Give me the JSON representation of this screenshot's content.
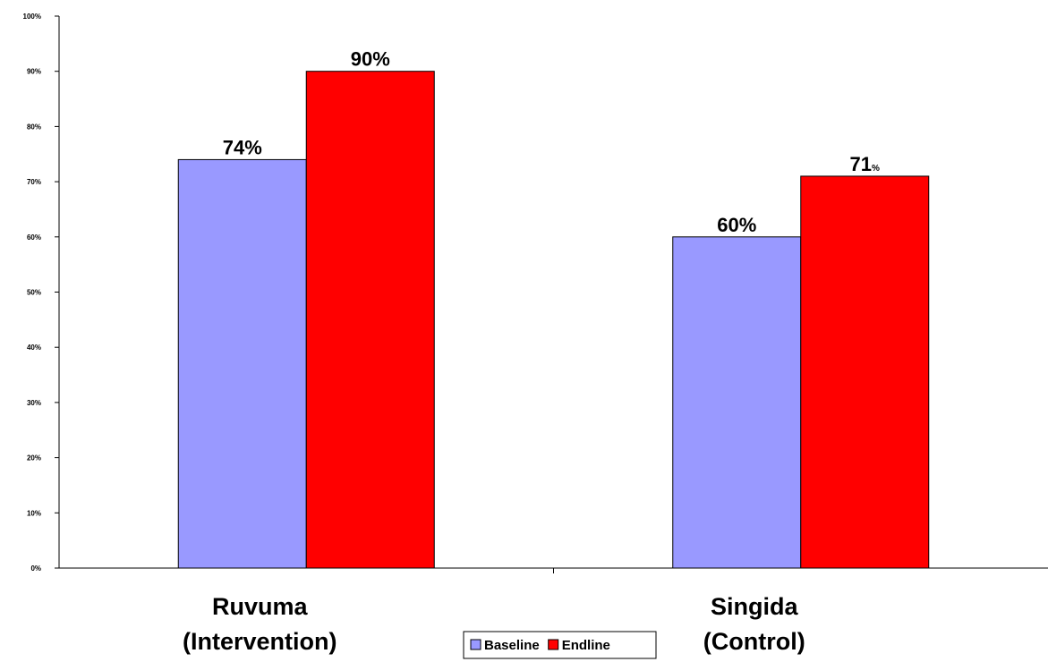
{
  "chart_data": {
    "type": "bar",
    "categories": [
      [
        "Ruvuma",
        "(Intervention)"
      ],
      [
        "Singida",
        "(Control)"
      ]
    ],
    "series": [
      {
        "name": "Baseline",
        "values": [
          74,
          60
        ],
        "color": "#9999ff",
        "labels": [
          "74%",
          "60%"
        ]
      },
      {
        "name": "Endline",
        "values": [
          90,
          71
        ],
        "color": "#ff0000",
        "labels": [
          "90%",
          "71%"
        ]
      }
    ],
    "ylim": [
      0,
      100
    ],
    "yticks": [
      "0%",
      "10%",
      "20%",
      "30%",
      "40%",
      "50%",
      "60%",
      "70%",
      "80%",
      "90%",
      "100%"
    ],
    "title": "",
    "xlabel": "",
    "ylabel": "",
    "grid": false,
    "legend_position": "bottom-center"
  }
}
